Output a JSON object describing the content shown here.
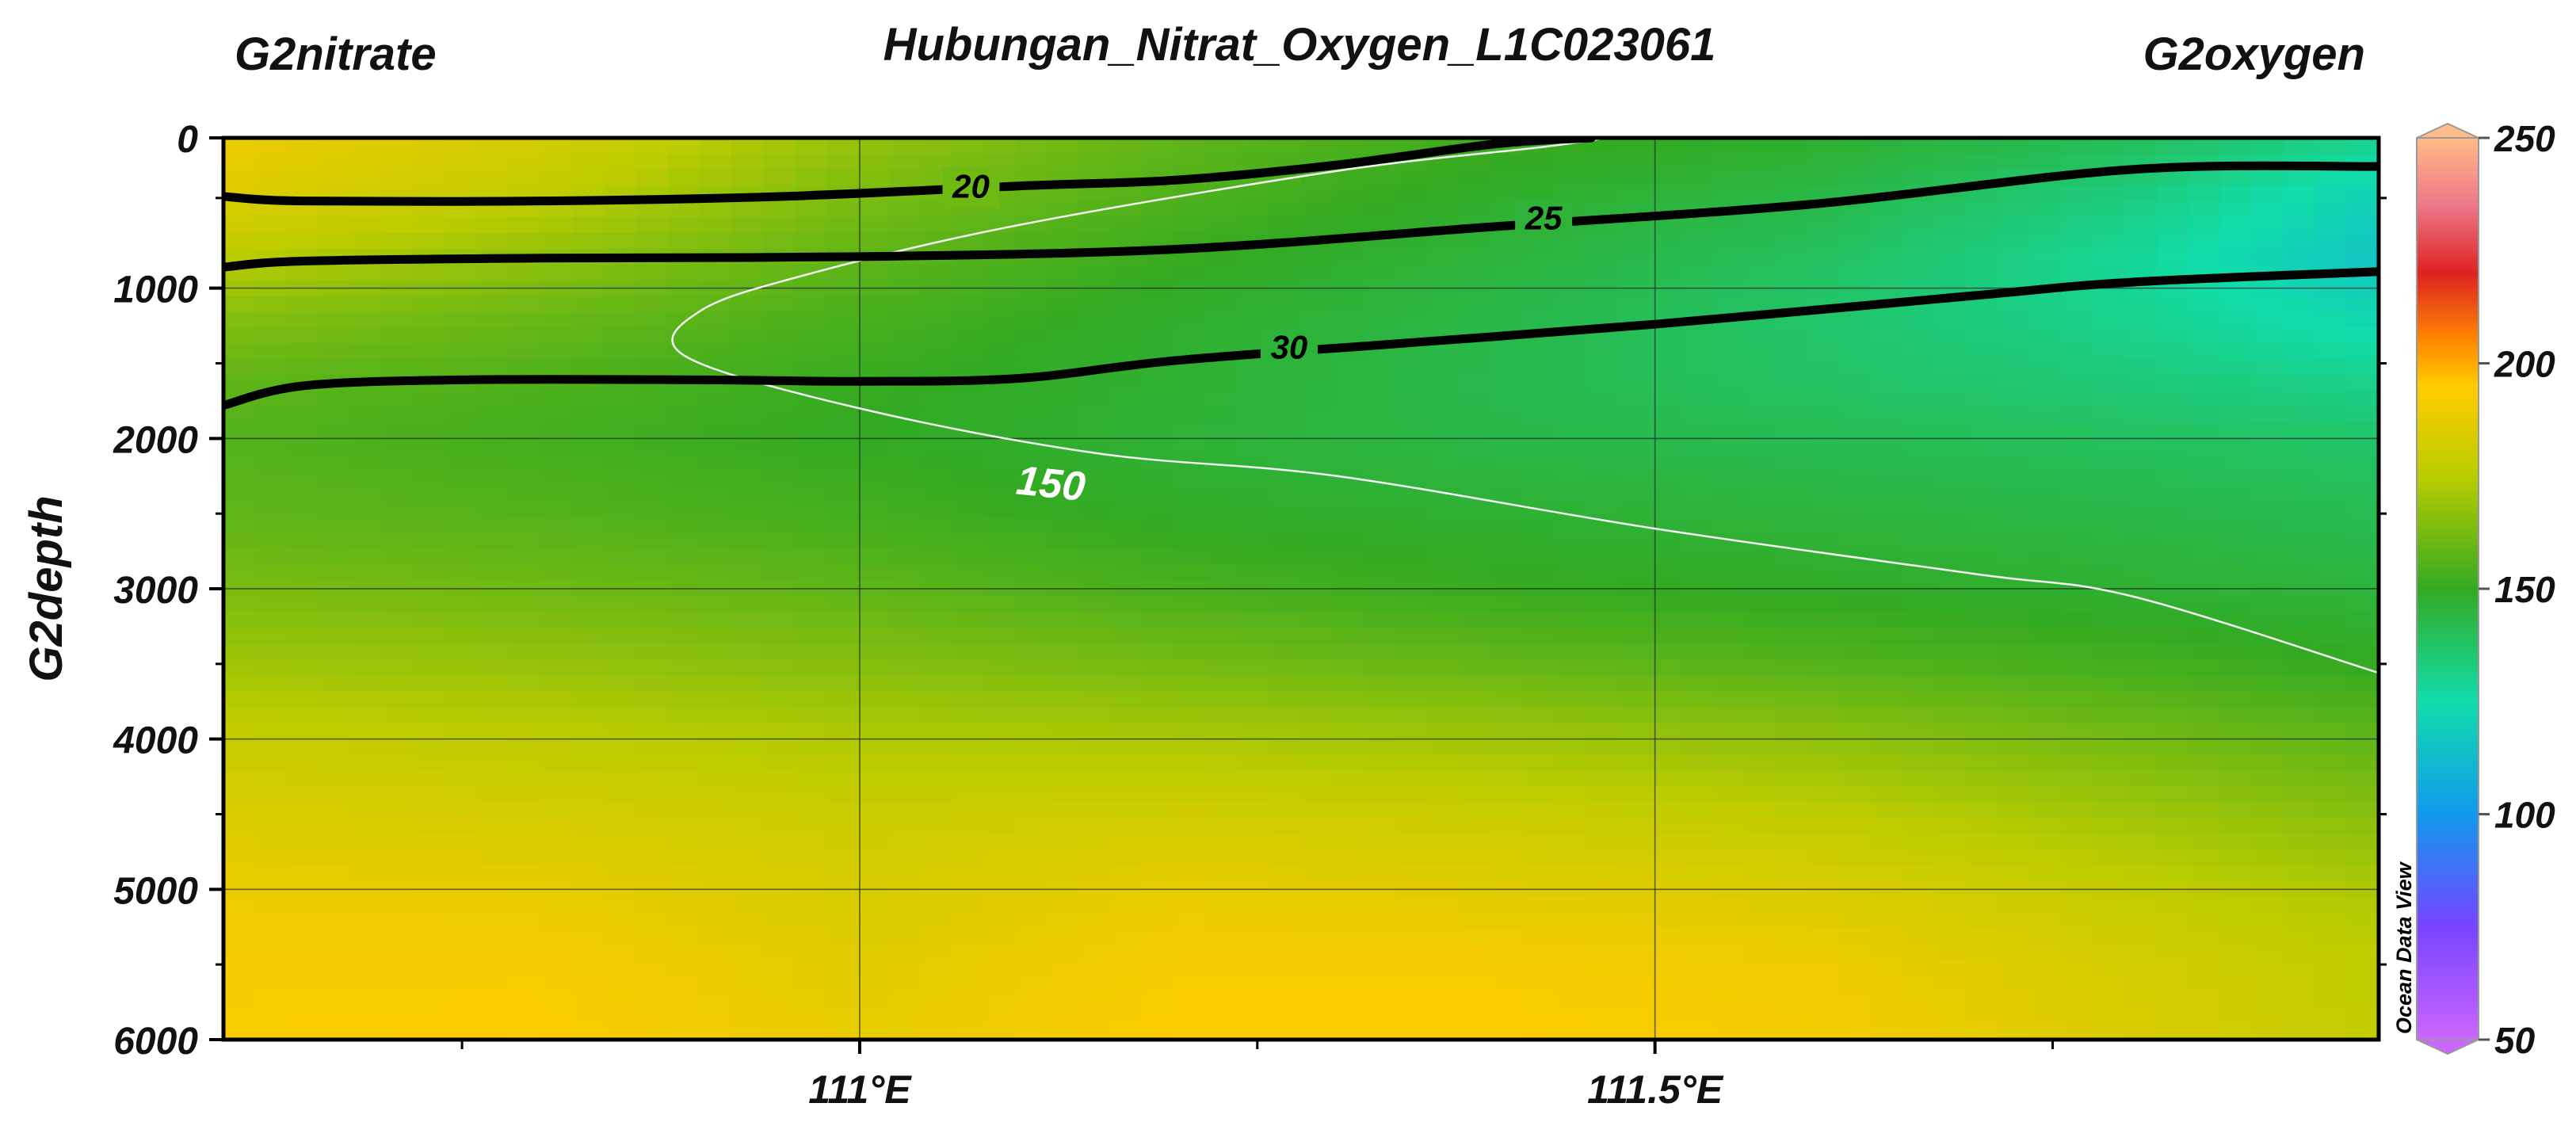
{
  "chart_data": {
    "type": "heatmap",
    "title": "Hubungan_Nitrat_Oxygen_L1C023061",
    "left_title": "G2nitrate",
    "right_title": "G2oxygen",
    "ylabel": "G2depth",
    "xlabel": "",
    "credit": "Ocean Data View",
    "x_range": [
      110.6,
      111.955
    ],
    "y_range": [
      0,
      6000
    ],
    "y_inverted": true,
    "grid": true,
    "x_ticks": [
      {
        "value": 111.0,
        "label": "111°E"
      },
      {
        "value": 111.5,
        "label": "111.5°E"
      }
    ],
    "x_minor_ticks": [
      110.75,
      111.25,
      111.75
    ],
    "y_ticks": [
      {
        "value": 0,
        "label": "0"
      },
      {
        "value": 1000,
        "label": "1000"
      },
      {
        "value": 2000,
        "label": "2000"
      },
      {
        "value": 3000,
        "label": "3000"
      },
      {
        "value": 4000,
        "label": "4000"
      },
      {
        "value": 5000,
        "label": "5000"
      },
      {
        "value": 6000,
        "label": "6000"
      }
    ],
    "y_minor_ticks": [
      400,
      1500,
      2500,
      3500,
      4500,
      5500
    ],
    "colorbar": {
      "label": "G2oxygen",
      "range": [
        50,
        250
      ],
      "ticks": [
        {
          "value": 250,
          "label": "250"
        },
        {
          "value": 200,
          "label": "200"
        },
        {
          "value": 150,
          "label": "150"
        },
        {
          "value": 100,
          "label": "100"
        },
        {
          "value": 50,
          "label": "50"
        }
      ],
      "stops": [
        {
          "value": 50,
          "color": "#cc66ff"
        },
        {
          "value": 75,
          "color": "#7744ff"
        },
        {
          "value": 100,
          "color": "#1199ee"
        },
        {
          "value": 125,
          "color": "#11ddaa"
        },
        {
          "value": 150,
          "color": "#33aa22"
        },
        {
          "value": 175,
          "color": "#bbcc00"
        },
        {
          "value": 195,
          "color": "#ffcc00"
        },
        {
          "value": 205,
          "color": "#ff8800"
        },
        {
          "value": 220,
          "color": "#dd2222"
        },
        {
          "value": 235,
          "color": "#ee7788"
        },
        {
          "value": 250,
          "color": "#ffbb88"
        }
      ]
    },
    "oxygen_grid": {
      "x": [
        110.6,
        110.8,
        111.0,
        111.2,
        111.4,
        111.6,
        111.8,
        111.955
      ],
      "depth": [
        0,
        400,
        800,
        1200,
        1600,
        2000,
        2500,
        3000,
        3500,
        4000,
        4500,
        5000,
        5500,
        6000
      ],
      "values": [
        [
          190,
          182,
          168,
          158,
          152,
          148,
          140,
          130
        ],
        [
          185,
          176,
          163,
          155,
          148,
          143,
          133,
          120
        ],
        [
          175,
          167,
          158,
          151,
          145,
          139,
          128,
          116
        ],
        [
          165,
          160,
          154,
          148,
          143,
          137,
          130,
          122
        ],
        [
          158,
          155,
          151,
          147,
          142,
          138,
          134,
          130
        ],
        [
          156,
          153,
          150,
          146,
          143,
          141,
          139,
          137
        ],
        [
          158,
          156,
          153,
          149,
          147,
          145,
          143,
          141
        ],
        [
          163,
          161,
          158,
          154,
          151,
          149,
          147,
          145
        ],
        [
          170,
          168,
          165,
          162,
          159,
          156,
          153,
          150
        ],
        [
          178,
          176,
          173,
          172,
          170,
          167,
          162,
          158
        ],
        [
          184,
          182,
          179,
          181,
          179,
          176,
          170,
          165
        ],
        [
          189,
          188,
          183,
          188,
          186,
          184,
          177,
          172
        ],
        [
          192,
          192,
          186,
          192,
          192,
          190,
          182,
          176
        ],
        [
          193,
          194,
          188,
          194,
          194,
          192,
          184,
          177
        ]
      ]
    },
    "nitrate_contours": [
      {
        "level": "20",
        "points": [
          [
            110.6,
            390
          ],
          [
            110.65,
            420
          ],
          [
            110.8,
            420
          ],
          [
            110.95,
            390
          ],
          [
            111.1,
            320
          ],
          [
            111.2,
            280
          ],
          [
            111.3,
            180
          ],
          [
            111.4,
            40
          ],
          [
            111.46,
            0
          ]
        ],
        "label_at": [
          111.07,
          330
        ]
      },
      {
        "level": "25",
        "points": [
          [
            110.6,
            860
          ],
          [
            110.65,
            820
          ],
          [
            110.8,
            800
          ],
          [
            111.0,
            790
          ],
          [
            111.2,
            740
          ],
          [
            111.4,
            590
          ],
          [
            111.6,
            440
          ],
          [
            111.8,
            210
          ],
          [
            111.955,
            190
          ]
        ],
        "label_at": [
          111.43,
          540
        ]
      },
      {
        "level": "30",
        "points": [
          [
            110.6,
            1780
          ],
          [
            110.65,
            1650
          ],
          [
            110.75,
            1610
          ],
          [
            110.9,
            1610
          ],
          [
            111.0,
            1620
          ],
          [
            111.1,
            1600
          ],
          [
            111.2,
            1480
          ],
          [
            111.35,
            1360
          ],
          [
            111.5,
            1240
          ],
          [
            111.7,
            1050
          ],
          [
            111.8,
            960
          ],
          [
            111.955,
            890
          ]
        ],
        "label_at": [
          111.27,
          1400
        ]
      }
    ],
    "oxygen_contours": [
      {
        "level": "150",
        "points": [
          [
            111.47,
            0
          ],
          [
            111.43,
            60
          ],
          [
            111.3,
            220
          ],
          [
            111.1,
            580
          ],
          [
            110.97,
            900
          ],
          [
            110.9,
            1150
          ],
          [
            110.89,
            1450
          ],
          [
            111.0,
            1800
          ],
          [
            111.15,
            2100
          ],
          [
            111.3,
            2250
          ],
          [
            111.5,
            2600
          ],
          [
            111.7,
            2900
          ],
          [
            111.8,
            3050
          ],
          [
            111.955,
            3560
          ]
        ],
        "label_at": [
          111.12,
          2320
        ]
      }
    ]
  }
}
